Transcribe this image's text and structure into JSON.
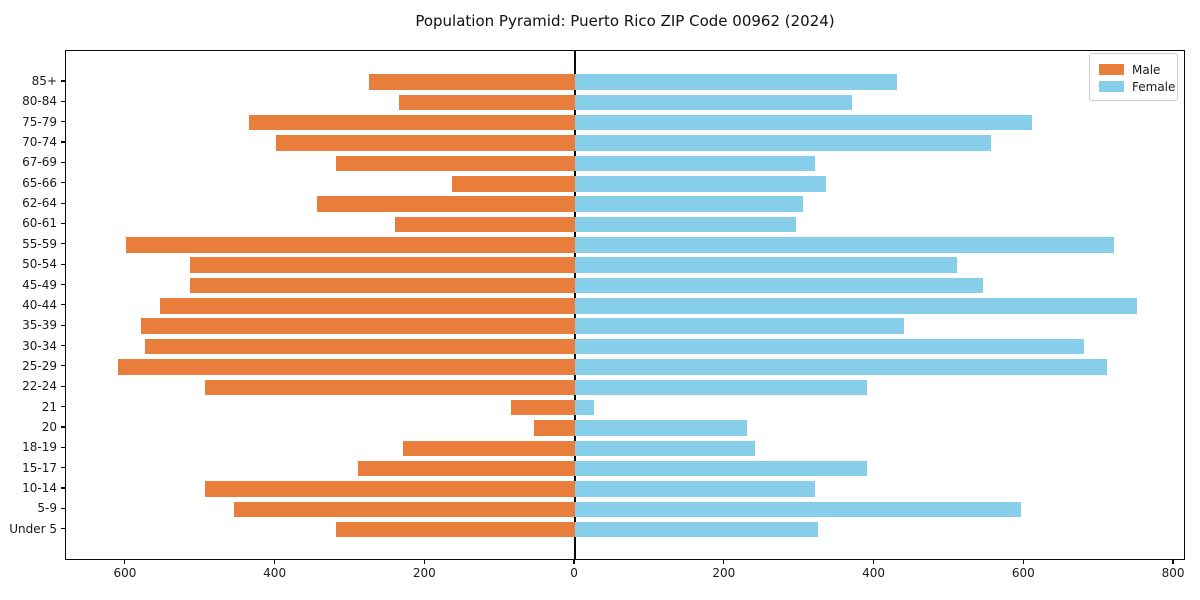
{
  "title": "Population Pyramid: Puerto Rico ZIP Code 00962 (2024)",
  "legend": {
    "male": "Male",
    "female": "Female"
  },
  "colors": {
    "male": "#e87d3c",
    "female": "#87ceeb",
    "axis": "#0a0a0a"
  },
  "chart_data": {
    "type": "bar",
    "subtype": "population-pyramid",
    "title": "Population Pyramid: Puerto Rico ZIP Code 00962 (2024)",
    "categories_top_to_bottom": [
      "85+",
      "80-84",
      "75-79",
      "70-74",
      "67-69",
      "65-66",
      "62-64",
      "60-61",
      "55-59",
      "50-54",
      "45-49",
      "40-44",
      "35-39",
      "30-34",
      "25-29",
      "22-24",
      "21",
      "20",
      "18-19",
      "15-17",
      "10-14",
      "5-9",
      "Under 5"
    ],
    "series": [
      {
        "name": "Male",
        "side": "left",
        "color": "#e87d3c",
        "values": [
          275,
          235,
          435,
          400,
          320,
          165,
          345,
          240,
          600,
          515,
          515,
          555,
          580,
          575,
          610,
          495,
          85,
          55,
          230,
          290,
          495,
          455,
          320
        ]
      },
      {
        "name": "Female",
        "side": "right",
        "color": "#87ceeb",
        "values": [
          430,
          370,
          610,
          555,
          320,
          335,
          305,
          295,
          720,
          510,
          545,
          750,
          440,
          680,
          710,
          390,
          25,
          230,
          240,
          390,
          320,
          595,
          325
        ]
      }
    ],
    "x_ticks": {
      "values": [
        -600,
        -400,
        -200,
        0,
        200,
        400,
        600,
        800
      ],
      "labels": [
        "600",
        "400",
        "200",
        "0",
        "200",
        "400",
        "600",
        "800"
      ]
    },
    "xlim": [
      -680,
      816
    ],
    "grid": false,
    "legend_position": "upper-right"
  }
}
